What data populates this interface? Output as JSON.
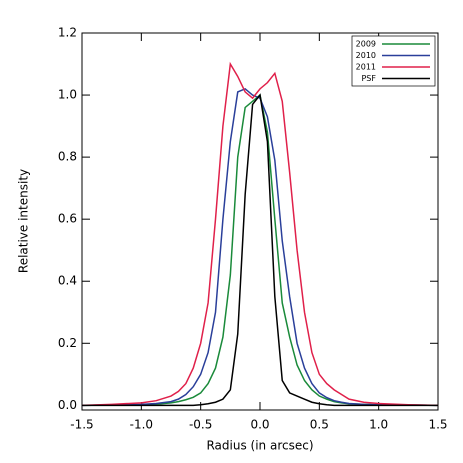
{
  "chart_data": {
    "type": "line",
    "xlabel": "Radius (in arcsec)",
    "ylabel": "Relative intensity",
    "x": [
      -1.5,
      -1.25,
      -1.0,
      -0.875,
      -0.75,
      -0.6875,
      -0.625,
      -0.5625,
      -0.5,
      -0.4375,
      -0.375,
      -0.3125,
      -0.25,
      -0.1875,
      -0.125,
      -0.0625,
      0,
      0.0625,
      0.125,
      0.1875,
      0.25,
      0.3125,
      0.375,
      0.4375,
      0.5,
      0.5625,
      0.625,
      0.6875,
      0.75,
      0.875,
      1.0,
      1.25,
      1.5
    ],
    "series": [
      {
        "name": "2009",
        "color": "#1a8a3a",
        "values": [
          0,
          0.001,
          0.002,
          0.004,
          0.008,
          0.012,
          0.018,
          0.026,
          0.04,
          0.07,
          0.12,
          0.22,
          0.42,
          0.8,
          0.96,
          0.98,
          1.0,
          0.88,
          0.6,
          0.33,
          0.22,
          0.13,
          0.08,
          0.05,
          0.03,
          0.02,
          0.012,
          0.008,
          0.005,
          0.003,
          0.002,
          0.001,
          0
        ]
      },
      {
        "name": "2010",
        "color": "#2a3f9a",
        "values": [
          0,
          0.001,
          0.003,
          0.006,
          0.012,
          0.02,
          0.035,
          0.06,
          0.1,
          0.17,
          0.3,
          0.6,
          0.85,
          1.01,
          1.02,
          1.0,
          0.99,
          0.93,
          0.79,
          0.53,
          0.35,
          0.2,
          0.12,
          0.07,
          0.04,
          0.025,
          0.015,
          0.01,
          0.006,
          0.003,
          0.002,
          0.001,
          0
        ]
      },
      {
        "name": "2011",
        "color": "#e0204a",
        "values": [
          0,
          0.003,
          0.008,
          0.015,
          0.03,
          0.045,
          0.07,
          0.12,
          0.2,
          0.33,
          0.6,
          0.9,
          1.1,
          1.06,
          1.01,
          0.99,
          1.02,
          1.04,
          1.07,
          0.98,
          0.75,
          0.5,
          0.3,
          0.17,
          0.1,
          0.07,
          0.05,
          0.035,
          0.02,
          0.01,
          0.006,
          0.002,
          0
        ]
      },
      {
        "name": "PSF",
        "color": "#000000",
        "values": [
          0,
          0,
          0,
          0,
          0,
          0,
          0,
          0,
          0.002,
          0.005,
          0.01,
          0.02,
          0.05,
          0.23,
          0.68,
          0.97,
          1.0,
          0.85,
          0.35,
          0.08,
          0.04,
          0.03,
          0.02,
          0.01,
          0.005,
          0.002,
          0,
          0,
          0,
          0,
          0,
          0,
          0
        ]
      }
    ],
    "xlim": [
      -1.5,
      1.5
    ],
    "xticks": [
      -1.5,
      {
        "value": -1.0,
        "label": "-1.0"
      },
      -0.5,
      {
        "value": 0.0,
        "label": "0.0"
      },
      0.5,
      {
        "value": 1.0,
        "label": "1.0"
      },
      1.5
    ],
    "ylim": [
      -0.015,
      1.2
    ],
    "yticks": [
      {
        "value": 0.0,
        "label": "0.0"
      },
      0.2,
      0.4,
      0.6,
      0.8,
      {
        "value": 1.0,
        "label": "1.0"
      },
      1.2
    ],
    "legend": "upper right"
  }
}
